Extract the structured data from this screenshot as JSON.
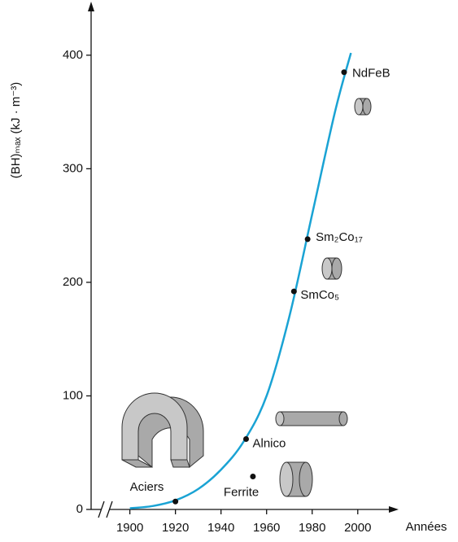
{
  "chart_data": {
    "type": "line",
    "y_label": "(BH)ₘₐₓ (kJ · m⁻³)",
    "x_label": "Années",
    "x": [
      1900,
      1910,
      1920,
      1930,
      1940,
      1950,
      1960,
      1970,
      1980,
      1990,
      1997
    ],
    "values": [
      1,
      3,
      8,
      18,
      35,
      60,
      100,
      170,
      260,
      350,
      402
    ],
    "color": "#1aa3d4",
    "points": [
      {
        "label": "Aciers",
        "x": 1920,
        "value": 7
      },
      {
        "label": "Alnico",
        "x": 1951,
        "value": 62
      },
      {
        "label": "Ferrite",
        "x": 1954,
        "value": 29
      },
      {
        "label": "SmCo₅",
        "x": 1972,
        "value": 192
      },
      {
        "label": "Sm₂Co₁₇",
        "x": 1978,
        "value": 238
      },
      {
        "label": "NdFeB",
        "x": 1994,
        "value": 385
      }
    ],
    "xlim": [
      1883,
      2014
    ],
    "ylim": [
      0,
      440
    ],
    "xticks": [
      1900,
      1920,
      1940,
      1960,
      1980,
      2000
    ],
    "yticks": [
      0,
      100,
      200,
      300,
      400
    ]
  }
}
